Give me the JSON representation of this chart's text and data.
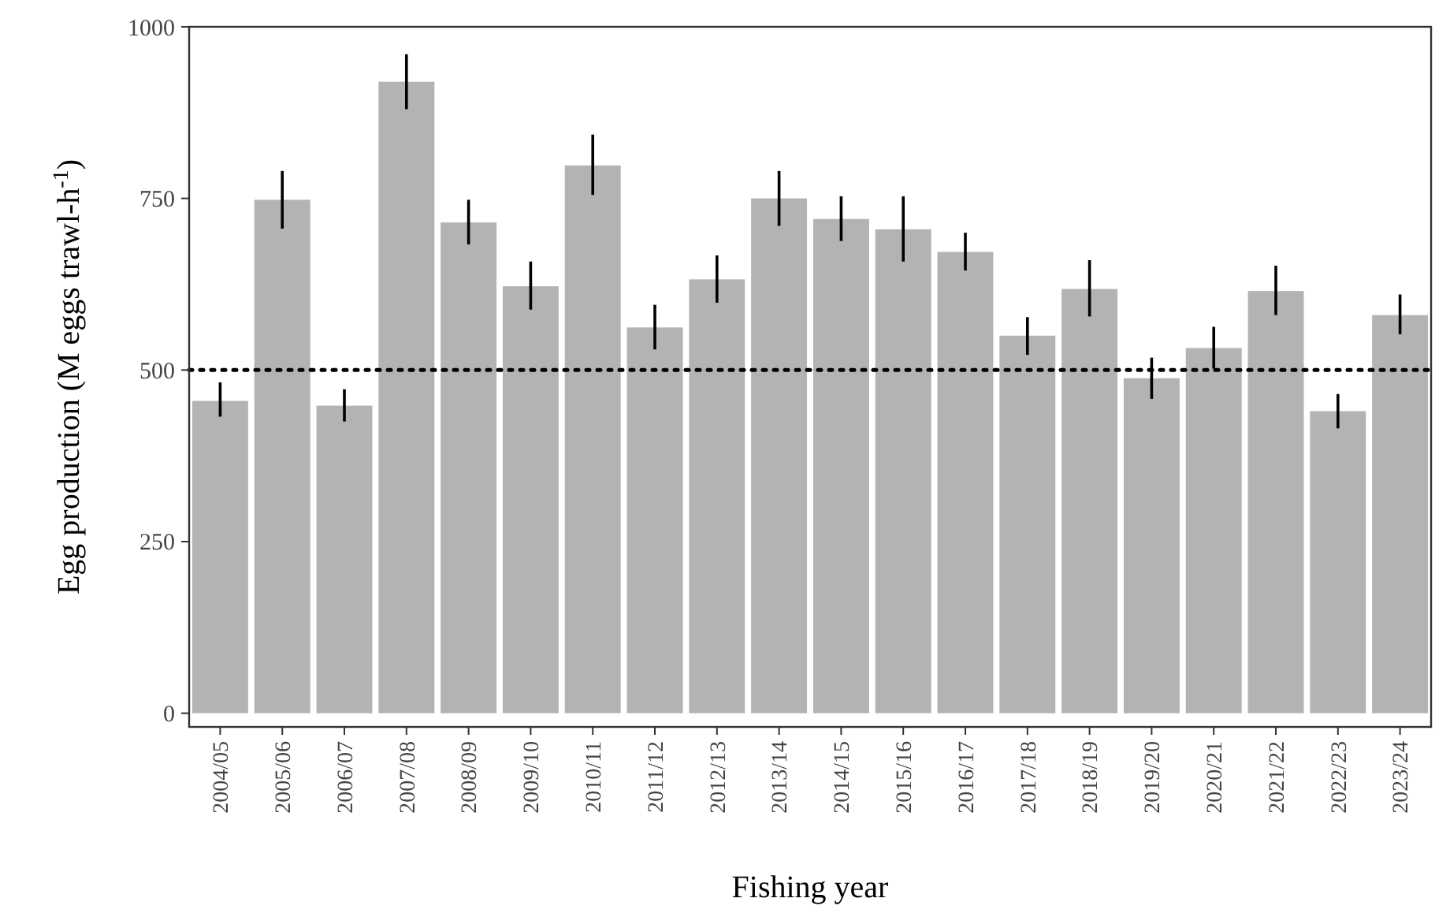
{
  "chart_data": {
    "type": "bar",
    "xlabel": "Fishing year",
    "ylabel": "Egg production (M eggs trawl-h$^{-1}$)",
    "categories": [
      "2004/05",
      "2005/06",
      "2006/07",
      "2007/08",
      "2008/09",
      "2009/10",
      "2010/11",
      "2011/12",
      "2012/13",
      "2013/14",
      "2014/15",
      "2015/16",
      "2016/17",
      "2017/18",
      "2018/19",
      "2019/20",
      "2020/21",
      "2021/22",
      "2022/23",
      "2023/24"
    ],
    "values": [
      455,
      748,
      448,
      920,
      715,
      622,
      798,
      562,
      632,
      750,
      720,
      705,
      672,
      550,
      618,
      488,
      532,
      615,
      440,
      580
    ],
    "errors": [
      [
        432,
        482
      ],
      [
        706,
        790
      ],
      [
        425,
        472
      ],
      [
        880,
        960
      ],
      [
        683,
        748
      ],
      [
        588,
        658
      ],
      [
        755,
        843
      ],
      [
        530,
        595
      ],
      [
        598,
        667
      ],
      [
        710,
        790
      ],
      [
        688,
        753
      ],
      [
        658,
        753
      ],
      [
        645,
        700
      ],
      [
        522,
        577
      ],
      [
        578,
        660
      ],
      [
        458,
        518
      ],
      [
        502,
        563
      ],
      [
        580,
        652
      ],
      [
        415,
        465
      ],
      [
        552,
        610
      ]
    ],
    "color": "#b3b3b3",
    "ylim": [
      -20,
      1000
    ],
    "yticks": [
      0,
      250,
      500,
      750,
      1000
    ],
    "ref_lines": [
      {
        "axis": "y",
        "value": 500,
        "color": "#000000",
        "line_style": "dotted"
      }
    ],
    "grid": false
  }
}
